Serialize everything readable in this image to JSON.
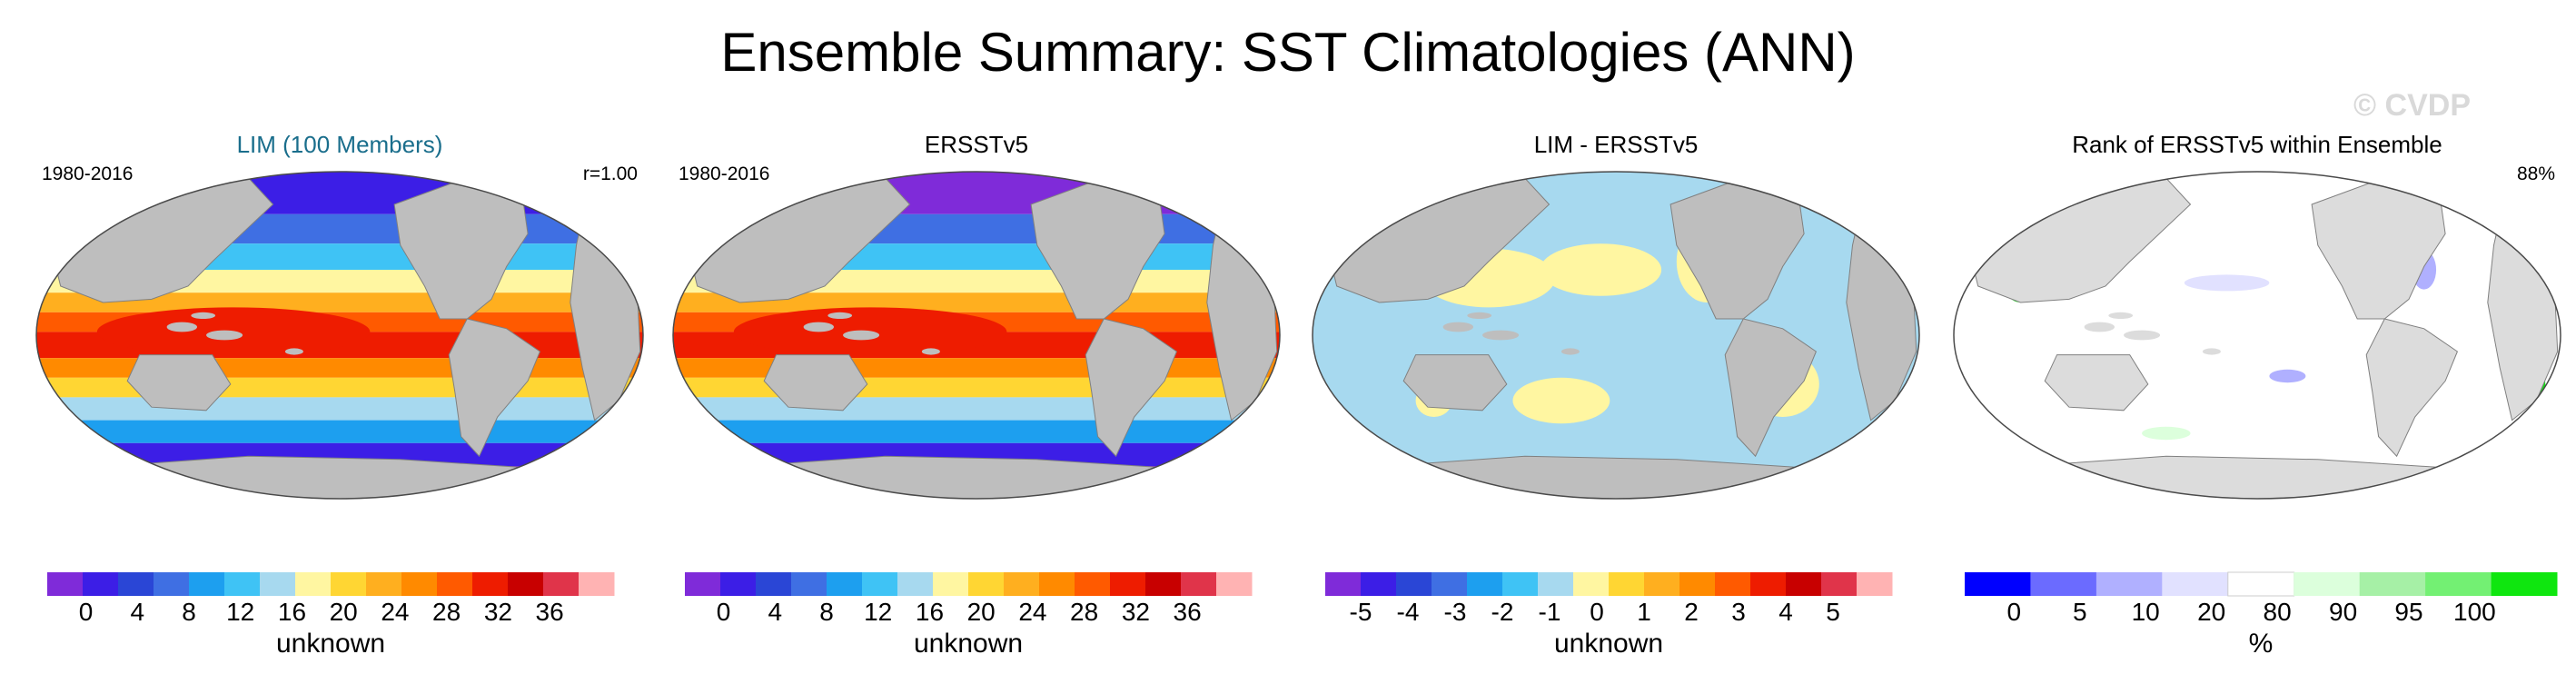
{
  "chart_data": {
    "type": "map-panels",
    "title": "Ensemble Summary: SST Climatologies (ANN)",
    "watermark": "© CVDP",
    "panels": [
      {
        "title": "LIM (100 Members)",
        "title_color": "#1a6e8c",
        "left_label": "1980-2016",
        "right_label": "r=1.00",
        "field": "sst",
        "colorbar": {
          "ticks": [
            "0",
            "4",
            "8",
            "12",
            "16",
            "20",
            "24",
            "28",
            "32",
            "36"
          ],
          "unit": "unknown",
          "colors": [
            "#7f2bd9",
            "#3c1ee6",
            "#2a46d6",
            "#3f6fe3",
            "#1d9fef",
            "#3fc3f5",
            "#a7d9ef",
            "#fff6a1",
            "#ffd633",
            "#ffaf1f",
            "#ff8a00",
            "#ff5a00",
            "#ee1c00",
            "#c80000",
            "#e0344a",
            "#ffb3b3"
          ]
        }
      },
      {
        "title": "ERSSTv5",
        "title_color": "#000000",
        "left_label": "1980-2016",
        "right_label": "",
        "field": "sst",
        "colorbar": {
          "ticks": [
            "0",
            "4",
            "8",
            "12",
            "16",
            "20",
            "24",
            "28",
            "32",
            "36"
          ],
          "unit": "unknown",
          "colors": [
            "#7f2bd9",
            "#3c1ee6",
            "#2a46d6",
            "#3f6fe3",
            "#1d9fef",
            "#3fc3f5",
            "#a7d9ef",
            "#fff6a1",
            "#ffd633",
            "#ffaf1f",
            "#ff8a00",
            "#ff5a00",
            "#ee1c00",
            "#c80000",
            "#e0344a",
            "#ffb3b3"
          ]
        }
      },
      {
        "title": "LIM - ERSSTv5",
        "title_color": "#000000",
        "left_label": "",
        "right_label": "",
        "field": "diff",
        "colorbar": {
          "ticks": [
            "-5",
            "-4",
            "-3",
            "-2",
            "-1",
            "0",
            "1",
            "2",
            "3",
            "4",
            "5"
          ],
          "unit": "unknown",
          "colors": [
            "#7f2bd9",
            "#3c1ee6",
            "#2a46d6",
            "#3f6fe3",
            "#1d9fef",
            "#3fc3f5",
            "#a7d9ef",
            "#fff6a1",
            "#ffd633",
            "#ffaf1f",
            "#ff8a00",
            "#ff5a00",
            "#ee1c00",
            "#c80000",
            "#e0344a",
            "#ffb3b3"
          ]
        }
      },
      {
        "title": "Rank of ERSSTv5 within Ensemble",
        "title_color": "#000000",
        "left_label": "",
        "right_label": "88%",
        "field": "rank",
        "colorbar": {
          "ticks": [
            "0",
            "5",
            "10",
            "20",
            "80",
            "90",
            "95",
            "100"
          ],
          "unit": "%",
          "colors": [
            "#0000ff",
            "#6b6bff",
            "#b0b0ff",
            "#e1e1ff",
            "#ffffff",
            "#dcffdc",
            "#a6f0a6",
            "#73f073",
            "#0fe60f"
          ]
        }
      }
    ]
  }
}
